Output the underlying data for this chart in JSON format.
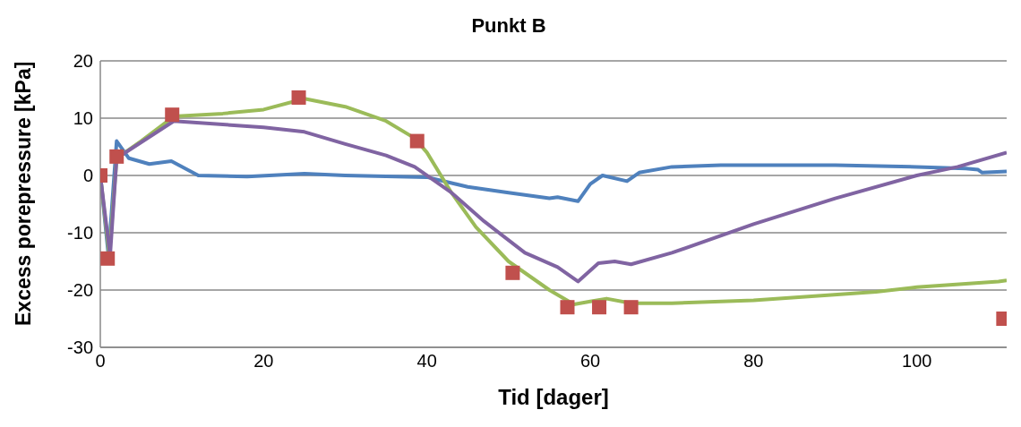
{
  "chart_data": {
    "type": "line",
    "title": "Punkt B",
    "xlabel": "Tid [dager]",
    "ylabel": "Excess porepressure [kPa]",
    "xlim": [
      0,
      111
    ],
    "xticks": [
      0,
      20,
      40,
      60,
      80,
      100
    ],
    "ylim": [
      -30,
      20
    ],
    "yticks": [
      -30,
      -20,
      -10,
      0,
      10,
      20
    ],
    "grid": "y",
    "legend": false,
    "line_style": "solid",
    "series": [
      {
        "color": "#4f81bd",
        "marker": "none",
        "x": [
          0,
          1,
          2,
          3.5,
          6,
          8.7,
          12,
          18,
          25,
          30,
          40,
          45,
          50,
          55,
          56,
          58.5,
          60,
          61.5,
          64.5,
          66,
          70,
          76,
          90,
          100,
          106,
          107.5,
          108,
          111
        ],
        "values": [
          0,
          -14,
          6,
          3,
          2,
          2.5,
          0,
          -0.2,
          0.3,
          0,
          -0.3,
          -2,
          -3,
          -4,
          -3.8,
          -4.5,
          -1.5,
          0,
          -1,
          0.5,
          1.5,
          1.8,
          1.8,
          1.5,
          1.2,
          1,
          0.5,
          0.7
        ]
      },
      {
        "color": "#9bbb59",
        "marker": "none",
        "x": [
          0,
          1.1,
          2,
          5,
          9,
          15,
          20,
          25,
          30,
          35,
          38.5,
          40,
          43,
          46,
          50,
          55,
          58,
          60,
          62,
          65,
          70,
          80,
          95,
          100,
          110,
          111
        ],
        "values": [
          0,
          -14,
          3,
          6,
          10.3,
          10.8,
          11.5,
          13.4,
          12,
          9.5,
          6.5,
          4,
          -3,
          -9,
          -15,
          -20,
          -22.5,
          -22,
          -21.5,
          -22.3,
          -22.3,
          -21.8,
          -20.3,
          -19.5,
          -18.5,
          -18.3
        ]
      },
      {
        "color": "#8064a2",
        "marker": "none",
        "x": [
          0,
          1.2,
          2,
          9,
          20,
          25,
          30,
          35,
          38.5,
          43,
          47,
          52,
          56,
          58.5,
          61,
          63,
          65,
          70,
          80,
          90,
          100,
          105,
          111
        ],
        "values": [
          0,
          -14,
          3,
          9.5,
          8.4,
          7.6,
          5.5,
          3.5,
          1.5,
          -3,
          -8,
          -13.5,
          -16,
          -18.5,
          -15.3,
          -15,
          -15.5,
          -13.5,
          -8.5,
          -4,
          0,
          1.5,
          4
        ]
      },
      {
        "type": "scatter",
        "color": "#c0504d",
        "marker": "square",
        "x": [
          0,
          0.9,
          2,
          8.8,
          24.3,
          38.8,
          50.5,
          57.2,
          61.1,
          65,
          110.6
        ],
        "values": [
          0,
          -14.5,
          3.3,
          10.6,
          13.6,
          6,
          -17,
          -23,
          -23,
          -23,
          -25
        ]
      }
    ]
  }
}
